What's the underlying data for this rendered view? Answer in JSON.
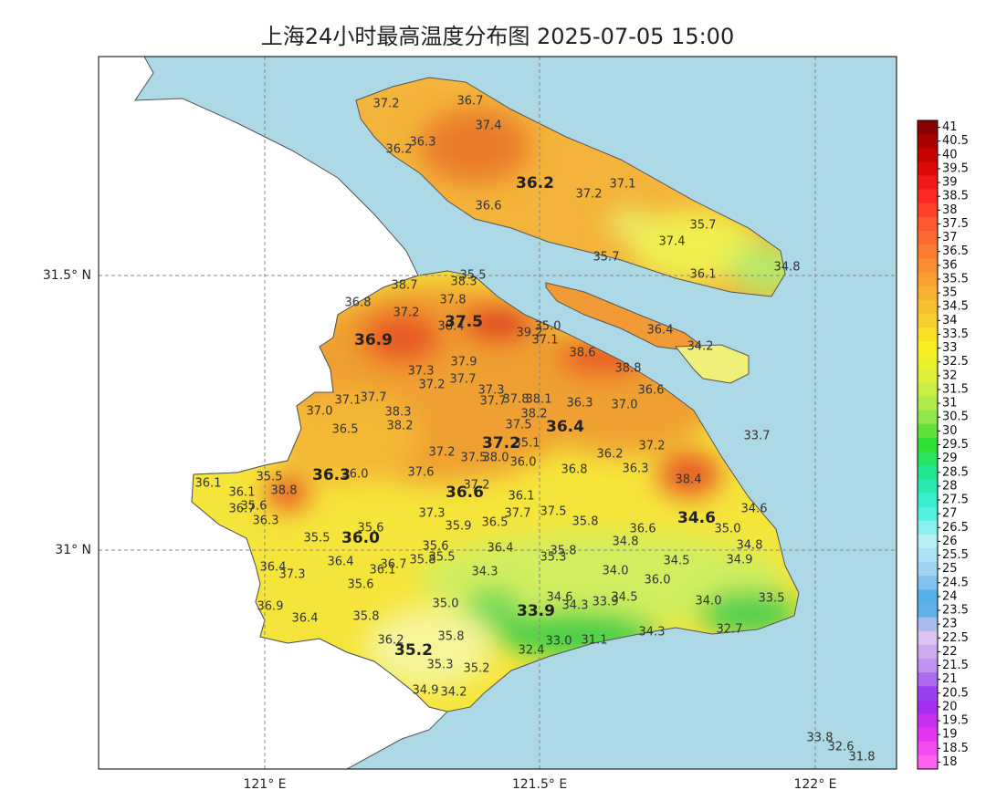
{
  "title": "上海24小时最高温度分布图 2025-07-05 15:00",
  "x_axis_labels": [
    "121° E",
    "121.5° E",
    "122° E"
  ],
  "y_axis_labels": [
    "31.5° N",
    "31° N"
  ],
  "colorbar": {
    "clim": [
      18,
      41
    ],
    "labels": [
      41,
      40.5,
      40,
      39.5,
      39,
      38.5,
      38,
      37.5,
      37,
      36.5,
      36,
      35.5,
      35,
      34.5,
      34,
      33.5,
      33,
      32.5,
      32,
      31.5,
      31,
      30.5,
      30,
      29.5,
      29,
      28.5,
      28,
      27.5,
      27,
      26.5,
      26,
      25.5,
      25,
      24.5,
      24,
      23.5,
      23,
      22.5,
      22,
      21.5,
      21,
      20.5,
      20,
      19.5,
      19,
      18.5,
      18
    ],
    "colors": [
      "#8b0000",
      "#d00000",
      "#ff2020",
      "#ff5530",
      "#f88030",
      "#f8a830",
      "#f8cc30",
      "#f8f020",
      "#d8f040",
      "#a0e850",
      "#30e030",
      "#20e8a0",
      "#40f0e0",
      "#b8f0f8",
      "#a0d0f0",
      "#40a8e8",
      "#e0c8f0",
      "#c090f0",
      "#9030f0",
      "#e030f0",
      "#ff60f0"
    ]
  },
  "stations": [
    "37.2",
    "36.7",
    "37.4",
    "36.3",
    "36.2",
    "37.1",
    "37.2",
    "36.6",
    "35.7",
    "37.4",
    "35.7",
    "36.1",
    "34.8",
    "35.5",
    "38.3",
    "38.7",
    "37.8",
    "36.8",
    "37.2",
    "38.4",
    "35.0",
    "39.2",
    "37.1",
    "36.4",
    "38.6",
    "34.2",
    "37.9",
    "37.3",
    "38.8",
    "37.7",
    "37.2",
    "37.3",
    "36.6",
    "37.1",
    "37.7",
    "37.7",
    "37.8",
    "38.1",
    "36.3",
    "37.0",
    "37.0",
    "38.3",
    "38.2",
    "36.5",
    "38.2",
    "37.5",
    "33.7",
    "35.1",
    "37.2",
    "36.2",
    "37.2",
    "37.5",
    "38.0",
    "36.0",
    "36.3",
    "36.8",
    "38.4",
    "37.6",
    "36.0",
    "35.5",
    "36.1",
    "37.2",
    "36.1",
    "38.8",
    "36.1",
    "34.6",
    "35.6",
    "36.7",
    "37.3",
    "37.7",
    "37.5",
    "36.3",
    "36.5",
    "35.8",
    "35.9",
    "36.6",
    "35.0",
    "35.6",
    "35.5",
    "34.8",
    "34.8",
    "35.6",
    "36.4",
    "35.8",
    "36.4",
    "35.5",
    "35.8",
    "36.7",
    "36.1",
    "35.3",
    "34.5",
    "34.9",
    "36.4",
    "37.3",
    "34.3",
    "34.0",
    "36.0",
    "35.6",
    "34.6",
    "34.3",
    "33.9",
    "34.5",
    "34.0",
    "33.5",
    "35.0",
    "36.9",
    "35.8",
    "36.4",
    "34.3",
    "32.7",
    "36.2",
    "35.8",
    "33.0",
    "31.1",
    "32.4",
    "35.3",
    "35.2",
    "34.9",
    "34.2",
    "33.8",
    "32.6",
    "31.8"
  ],
  "districts": [
    "36.2",
    "37.5",
    "36.9",
    "36.4",
    "37.2",
    "36.3",
    "36.6",
    "34.6",
    "36.0",
    "33.9",
    "35.2"
  ]
}
